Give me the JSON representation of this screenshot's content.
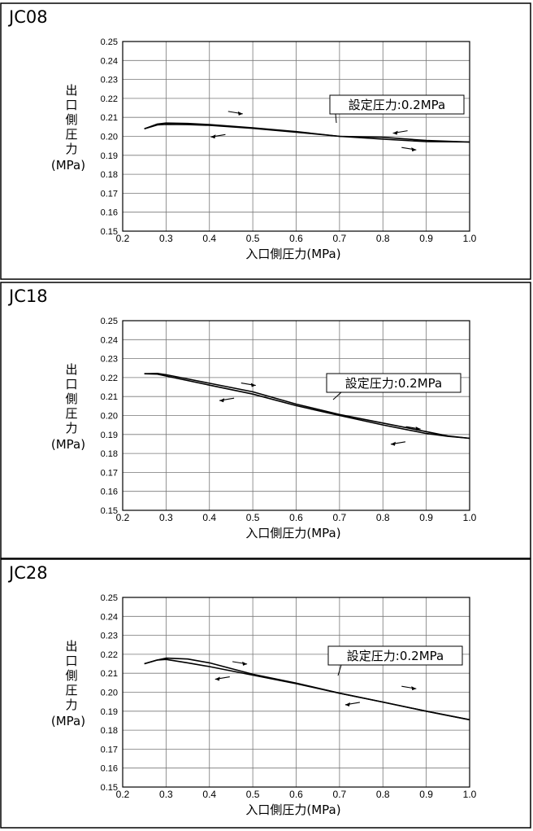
{
  "chart_data": [
    {
      "type": "line",
      "title": "JC08",
      "xlabel": "入口側圧力(MPa)",
      "ylabel_chars": [
        "出",
        "口",
        "側",
        "圧",
        "力"
      ],
      "ylabel_unit": "(MPa)",
      "xlim": [
        0.2,
        1.0
      ],
      "ylim": [
        0.15,
        0.25
      ],
      "x_ticks": [
        "0.2",
        "0.3",
        "0.4",
        "0.5",
        "0.6",
        "0.7",
        "0.8",
        "0.9",
        "1.0"
      ],
      "y_ticks": [
        "0.15",
        "0.16",
        "0.17",
        "0.18",
        "0.19",
        "0.20",
        "0.21",
        "0.22",
        "0.23",
        "0.24",
        "0.25"
      ],
      "grid": true,
      "annotation": "設定圧力:0.2MPa",
      "series": [
        {
          "direction": "increasing",
          "x": [
            0.25,
            0.28,
            0.3,
            0.35,
            0.4,
            0.5,
            0.6,
            0.7,
            0.8,
            0.9,
            1.0
          ],
          "y": [
            0.204,
            0.2065,
            0.207,
            0.2068,
            0.2062,
            0.2045,
            0.2025,
            0.2,
            0.1985,
            0.1972,
            0.197
          ]
        },
        {
          "direction": "decreasing",
          "x": [
            1.0,
            0.9,
            0.8,
            0.7,
            0.6,
            0.5,
            0.4,
            0.35,
            0.3,
            0.28,
            0.25
          ],
          "y": [
            0.197,
            0.1978,
            0.1995,
            0.2,
            0.2022,
            0.2042,
            0.2058,
            0.2062,
            0.2063,
            0.206,
            0.204
          ]
        }
      ],
      "arrows": [
        {
          "dir": "right",
          "x": 0.46,
          "y": 0.2125
        },
        {
          "dir": "left",
          "x": 0.42,
          "y": 0.2003
        },
        {
          "dir": "left",
          "x": 0.84,
          "y": 0.2023
        },
        {
          "dir": "right",
          "x": 0.86,
          "y": 0.1935
        }
      ]
    },
    {
      "type": "line",
      "title": "JC18",
      "xlabel": "入口側圧力(MPa)",
      "ylabel_chars": [
        "出",
        "口",
        "側",
        "圧",
        "力"
      ],
      "ylabel_unit": "(MPa)",
      "xlim": [
        0.2,
        1.0
      ],
      "ylim": [
        0.15,
        0.25
      ],
      "x_ticks": [
        "0.2",
        "0.3",
        "0.4",
        "0.5",
        "0.6",
        "0.7",
        "0.8",
        "0.9",
        "1.0"
      ],
      "y_ticks": [
        "0.15",
        "0.16",
        "0.17",
        "0.18",
        "0.19",
        "0.20",
        "0.21",
        "0.22",
        "0.23",
        "0.24",
        "0.25"
      ],
      "grid": true,
      "annotation": "設定圧力:0.2MPa",
      "series": [
        {
          "direction": "increasing",
          "x": [
            0.25,
            0.28,
            0.3,
            0.4,
            0.5,
            0.6,
            0.7,
            0.8,
            0.9,
            0.95,
            1.0
          ],
          "y": [
            0.222,
            0.2222,
            0.2215,
            0.217,
            0.2125,
            0.206,
            0.2005,
            0.196,
            0.1915,
            0.1892,
            0.188
          ]
        },
        {
          "direction": "decreasing",
          "x": [
            1.0,
            0.95,
            0.9,
            0.8,
            0.7,
            0.6,
            0.5,
            0.4,
            0.3,
            0.28,
            0.25
          ],
          "y": [
            0.188,
            0.189,
            0.1905,
            0.195,
            0.2,
            0.2052,
            0.2113,
            0.216,
            0.2208,
            0.2218,
            0.222
          ]
        }
      ],
      "arrows": [
        {
          "dir": "right",
          "x": 0.49,
          "y": 0.2165
        },
        {
          "dir": "left",
          "x": 0.44,
          "y": 0.2085
        },
        {
          "dir": "right",
          "x": 0.87,
          "y": 0.1935
        },
        {
          "dir": "left",
          "x": 0.835,
          "y": 0.1855
        }
      ]
    },
    {
      "type": "line",
      "title": "JC28",
      "xlabel": "入口側圧力(MPa)",
      "ylabel_chars": [
        "出",
        "口",
        "側",
        "圧",
        "力"
      ],
      "ylabel_unit": "(MPa)",
      "xlim": [
        0.2,
        1.0
      ],
      "ylim": [
        0.15,
        0.25
      ],
      "x_ticks": [
        "0.2",
        "0.3",
        "0.4",
        "0.5",
        "0.6",
        "0.7",
        "0.8",
        "0.9",
        "1.0"
      ],
      "y_ticks": [
        "0.15",
        "0.16",
        "0.17",
        "0.18",
        "0.19",
        "0.20",
        "0.21",
        "0.22",
        "0.23",
        "0.24",
        "0.25"
      ],
      "grid": true,
      "annotation": "設定圧力:0.2MPa",
      "series": [
        {
          "direction": "increasing",
          "x": [
            0.25,
            0.28,
            0.3,
            0.35,
            0.4,
            0.45,
            0.5,
            0.6,
            0.7,
            0.8,
            0.9,
            1.0
          ],
          "y": [
            0.215,
            0.217,
            0.218,
            0.2175,
            0.2155,
            0.2125,
            0.2095,
            0.2048,
            0.1995,
            0.1948,
            0.19,
            0.1855
          ]
        },
        {
          "direction": "decreasing",
          "x": [
            1.0,
            0.9,
            0.8,
            0.7,
            0.6,
            0.5,
            0.4,
            0.35,
            0.3,
            0.28,
            0.25
          ],
          "y": [
            0.1855,
            0.19,
            0.1948,
            0.1995,
            0.2045,
            0.209,
            0.2135,
            0.2155,
            0.2173,
            0.217,
            0.215
          ]
        }
      ],
      "arrows": [
        {
          "dir": "right",
          "x": 0.47,
          "y": 0.2155
        },
        {
          "dir": "left",
          "x": 0.43,
          "y": 0.2075
        },
        {
          "dir": "right",
          "x": 0.86,
          "y": 0.2025
        },
        {
          "dir": "left",
          "x": 0.73,
          "y": 0.194
        }
      ]
    }
  ]
}
